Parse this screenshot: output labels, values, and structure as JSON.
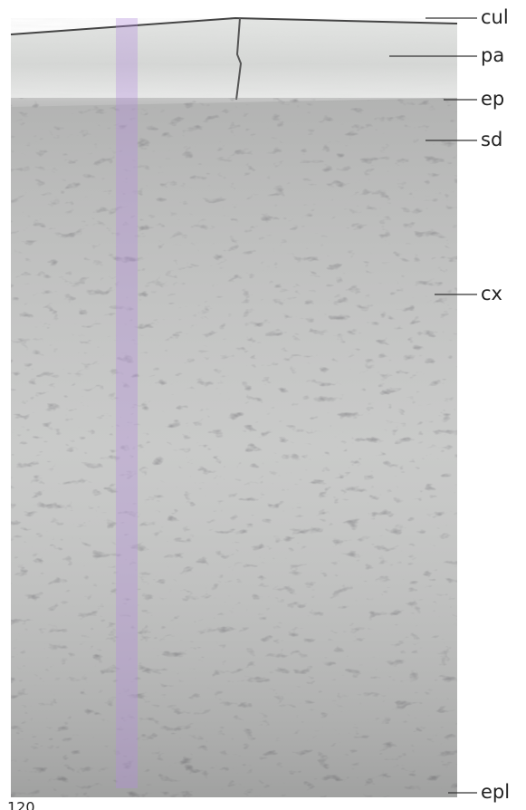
{
  "labels": [
    "cul",
    "pa",
    "ep",
    "sd",
    "cx",
    "epl"
  ],
  "scale_label": "120"
}
